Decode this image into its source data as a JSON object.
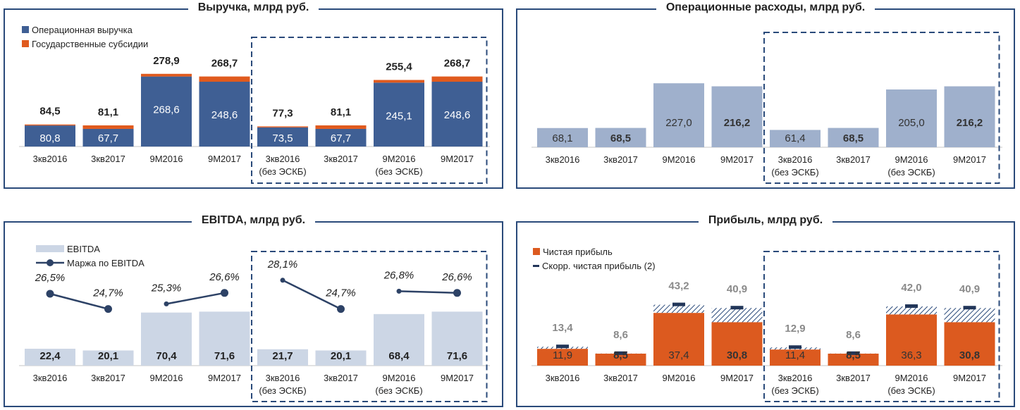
{
  "colors": {
    "operational": "#3f5f94",
    "subsidy": "#e05a1e",
    "opex": "#9fb0cc",
    "ebitda": "#ccd6e5",
    "margin_line": "#2d4266",
    "net_profit": "#dc5a1f",
    "adjusted_marker": "#223659",
    "frame": "#2a4a7a",
    "grey_label": "#8a8a8a"
  },
  "chart_data": [
    {
      "id": "revenue",
      "type": "bar",
      "stacked": true,
      "title": "Выручка, млрд руб.",
      "legend": [
        "Операционная выручка",
        "Государственные субсидии"
      ],
      "legend_placement": "top-left",
      "categories": [
        "3кв2016",
        "3кв2017",
        "9М2016",
        "9М2017",
        "3кв2016\n(без ЭСКБ)",
        "3кв2017",
        "9М2016\n(без ЭСКБ)",
        "9М2017"
      ],
      "category_lines": [
        [
          "3кв2016"
        ],
        [
          "3кв2017"
        ],
        [
          "9М2016"
        ],
        [
          "9М2017"
        ],
        [
          "3кв2016",
          "(без ЭСКБ)"
        ],
        [
          "3кв2017"
        ],
        [
          "9М2016",
          "(без ЭСКБ)"
        ],
        [
          "9М2017"
        ]
      ],
      "series": [
        {
          "name": "Операционная выручка",
          "values": [
            80.8,
            67.7,
            268.6,
            248.6,
            73.5,
            67.7,
            245.1,
            248.6
          ],
          "labels": [
            "80,8",
            "67,7",
            "268,6",
            "248,6",
            "73,5",
            "67,7",
            "245,1",
            "248,6"
          ]
        },
        {
          "name": "Государственные субсидии",
          "values": [
            3.7,
            13.4,
            10.3,
            20.1,
            3.8,
            13.4,
            10.3,
            20.1
          ]
        }
      ],
      "totals": [
        "84,5",
        "81,1",
        "278,9",
        "268,7",
        "77,3",
        "81,1",
        "255,4",
        "268,7"
      ],
      "total_values": [
        84.5,
        81.1,
        278.9,
        268.7,
        77.3,
        81.1,
        255.4,
        268.7
      ],
      "highlight_group": "excluding ESKB (dashed box over last 4 categories)",
      "ylim": [
        0,
        330
      ]
    },
    {
      "id": "opex",
      "type": "bar",
      "title": "Операционные расходы, млрд руб.",
      "categories": [
        "3кв2016",
        "3кв2017",
        "9М2016",
        "9М2017",
        "3кв2016\n(без ЭСКБ)",
        "3кв2017",
        "9М2016\n(без ЭСКБ)",
        "9М2017"
      ],
      "category_lines": [
        [
          "3кв2016"
        ],
        [
          "3кв2017"
        ],
        [
          "9М2016"
        ],
        [
          "9М2017"
        ],
        [
          "3кв2016",
          "(без ЭСКБ)"
        ],
        [
          "3кв2017"
        ],
        [
          "9М2016",
          "(без ЭСКБ)"
        ],
        [
          "9М2017"
        ]
      ],
      "values": [
        68.1,
        68.5,
        227.0,
        216.2,
        61.4,
        68.5,
        205.0,
        216.2
      ],
      "labels": [
        "68,1",
        "68,5",
        "227,0",
        "216,2",
        "61,4",
        "68,5",
        "205,0",
        "216,2"
      ],
      "bold": [
        false,
        true,
        false,
        true,
        false,
        true,
        false,
        true
      ],
      "ylim": [
        0,
        320
      ]
    },
    {
      "id": "ebitda",
      "type": "bar",
      "title": "EBITDA, млрд руб.",
      "legend": [
        "EBITDA",
        "Маржа по EBITDA"
      ],
      "legend_placement": "top-left",
      "categories": [
        "3кв2016",
        "3кв2017",
        "9М2016",
        "9М2017",
        "3кв2016\n(без ЭСКБ)",
        "3кв2017",
        "9М2016\n(без ЭСКБ)",
        "9М2017"
      ],
      "category_lines": [
        [
          "3кв2016"
        ],
        [
          "3кв2017"
        ],
        [
          "9М2016"
        ],
        [
          "9М2017"
        ],
        [
          "3кв2016",
          "(без ЭСКБ)"
        ],
        [
          "3кв2017"
        ],
        [
          "9М2016",
          "(без ЭСКБ)"
        ],
        [
          "9М2017"
        ]
      ],
      "values": [
        22.4,
        20.1,
        70.4,
        71.6,
        21.7,
        20.1,
        68.4,
        71.6
      ],
      "labels": [
        "22,4",
        "20,1",
        "70,4",
        "71,6",
        "21,7",
        "20,1",
        "68,4",
        "71,6"
      ],
      "margin": [
        26.5,
        24.7,
        25.3,
        26.6,
        28.1,
        24.7,
        26.8,
        26.6
      ],
      "margin_labels": [
        "26,5%",
        "24,7%",
        "25,3%",
        "26,6%",
        "28,1%",
        "24,7%",
        "26,8%",
        "26,6%"
      ],
      "margin_pairs": [
        [
          0,
          1
        ],
        [
          2,
          3
        ],
        [
          4,
          5
        ],
        [
          6,
          7
        ]
      ],
      "ylim": [
        0,
        105
      ]
    },
    {
      "id": "profit",
      "type": "bar",
      "title": "Прибыль, млрд руб.",
      "legend": [
        "Чистая прибыль",
        "Скорр. чистая прибыль (2)"
      ],
      "legend_placement": "top-left",
      "categories": [
        "3кв2016",
        "3кв2017",
        "9М2016",
        "9М2017",
        "3кв2016\n(без ЭСКБ)",
        "3кв2017",
        "9М2016\n(без ЭСКБ)",
        "9М2017"
      ],
      "category_lines": [
        [
          "3кв2016"
        ],
        [
          "3кв2017"
        ],
        [
          "9М2016"
        ],
        [
          "9М2017"
        ],
        [
          "3кв2016",
          "(без ЭСКБ)"
        ],
        [
          "3кв2017"
        ],
        [
          "9М2016",
          "(без ЭСКБ)"
        ],
        [
          "9М2017"
        ]
      ],
      "net_profit": [
        11.9,
        8.5,
        37.4,
        30.8,
        11.4,
        8.5,
        36.3,
        30.8
      ],
      "net_profit_labels": [
        "11,9",
        "8,5",
        "37,4",
        "30,8",
        "11,4",
        "8,5",
        "36,3",
        "30,8"
      ],
      "net_bold": [
        false,
        true,
        false,
        true,
        false,
        true,
        false,
        true
      ],
      "adjusted": [
        13.4,
        8.6,
        43.2,
        40.9,
        12.9,
        8.6,
        42.0,
        40.9
      ],
      "adjusted_labels": [
        "13,4",
        "8,6",
        "43,2",
        "40,9",
        "12,9",
        "8,6",
        "42,0",
        "40,9"
      ],
      "ylim": [
        0,
        62
      ]
    }
  ]
}
